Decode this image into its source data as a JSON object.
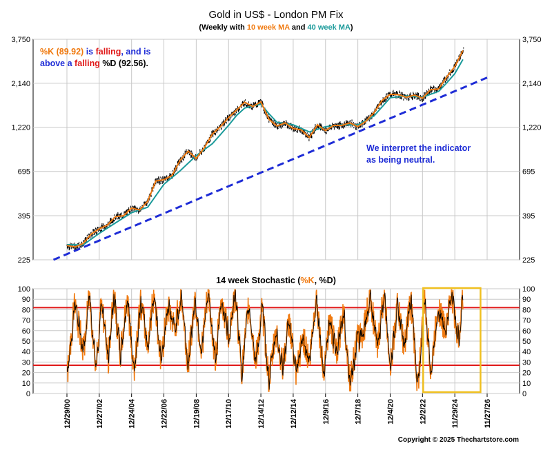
{
  "title": "Gold in US$ - London PM Fix",
  "subtitle": {
    "prefix": "(Weekly with ",
    "ma10": "10 week MA",
    "middle": " and ",
    "ma40": "40 week MA",
    "suffix": ")"
  },
  "colors": {
    "price": "#000000",
    "ma10": "#f07a10",
    "ma40": "#1a9a9a",
    "trendline": "#1e2cd6",
    "stoch_k": "#f07a10",
    "stoch_d": "#000000",
    "bands": "#e01818",
    "highlight": "#f0c020",
    "note_blue": "#1e2cd6",
    "note_red": "#e01818",
    "note_orange": "#f07a10"
  },
  "price_note": {
    "k_label": "%K (89.92)",
    "is": " is ",
    "falling1": "falling",
    "and_is": ", and is",
    "above_a": "above a ",
    "falling2": "falling",
    "d_label": " %D (92.56)."
  },
  "interpretation": {
    "line1": "We interpret the indicator",
    "line2": "as being neutral."
  },
  "stoch_title": {
    "prefix": "14 week Stochastic (",
    "k": "%K",
    "sep": ", ",
    "d": "%D",
    "suffix": ")"
  },
  "copyright": "Copyright © 2025 Thechartstore.com",
  "chart_data": [
    {
      "type": "line",
      "title": "Gold in US$ - London PM Fix",
      "yscale": "log",
      "ylim": [
        225,
        3750
      ],
      "yticks": [
        225,
        395,
        695,
        1220,
        2140,
        3750
      ],
      "ytick_labels": [
        "225",
        "395",
        "695",
        "1,220",
        "2,140",
        "3,750"
      ],
      "xlim": [
        "2000-12-29",
        "2026-11-27"
      ],
      "xticks": [
        "12/29/00",
        "12/27/02",
        "12/24/04",
        "12/22/06",
        "12/19/08",
        "12/17/10",
        "12/14/12",
        "12/12/14",
        "12/9/16",
        "12/7/18",
        "12/4/20",
        "12/2/22",
        "11/29/24",
        "11/27/26"
      ],
      "grid": true,
      "series": [
        {
          "name": "10 week MA",
          "x": [
            "2000-12-29",
            "2001-06-29",
            "2001-12-28",
            "2002-06-28",
            "2002-12-27",
            "2003-06-27",
            "2003-12-26",
            "2004-06-25",
            "2004-12-24",
            "2005-06-24",
            "2005-12-23",
            "2006-06-23",
            "2006-12-22",
            "2007-06-22",
            "2007-12-21",
            "2008-06-20",
            "2008-12-19",
            "2009-06-19",
            "2009-12-18",
            "2010-06-18",
            "2010-12-17",
            "2011-06-17",
            "2011-12-16",
            "2012-06-15",
            "2012-12-14",
            "2013-06-14",
            "2013-12-13",
            "2014-06-13",
            "2014-12-12",
            "2015-06-12",
            "2015-12-11",
            "2016-06-10",
            "2016-12-09",
            "2017-06-09",
            "2017-12-08",
            "2018-06-08",
            "2018-12-07",
            "2019-06-07",
            "2019-12-06",
            "2020-06-05",
            "2020-12-04",
            "2021-06-04",
            "2021-12-03",
            "2022-06-03",
            "2022-12-02",
            "2023-06-02",
            "2023-12-01",
            "2024-05-31",
            "2024-11-29",
            "2025-05-30"
          ],
          "values": [
            270,
            265,
            277,
            312,
            334,
            350,
            390,
            395,
            435,
            425,
            475,
            615,
            625,
            660,
            800,
            900,
            820,
            940,
            1120,
            1230,
            1380,
            1520,
            1680,
            1590,
            1690,
            1350,
            1240,
            1290,
            1200,
            1180,
            1070,
            1260,
            1170,
            1250,
            1250,
            1290,
            1230,
            1320,
            1470,
            1720,
            1860,
            1850,
            1790,
            1840,
            1770,
            1970,
            1990,
            2320,
            2650,
            3250
          ]
        },
        {
          "name": "40 week MA",
          "x": [
            "2000-12-29",
            "2001-12-28",
            "2002-12-27",
            "2003-12-26",
            "2004-12-24",
            "2005-12-23",
            "2006-12-22",
            "2007-12-21",
            "2008-12-19",
            "2009-12-18",
            "2010-12-17",
            "2011-06-17",
            "2011-12-16",
            "2012-06-15",
            "2012-12-14",
            "2013-06-14",
            "2013-12-13",
            "2014-12-12",
            "2015-12-11",
            "2016-12-09",
            "2017-12-08",
            "2018-12-07",
            "2019-12-06",
            "2020-12-04",
            "2021-12-03",
            "2022-12-02",
            "2023-12-01",
            "2024-05-31",
            "2024-11-29",
            "2025-05-30"
          ],
          "values": [
            273,
            272,
            315,
            360,
            410,
            440,
            590,
            700,
            850,
            990,
            1250,
            1420,
            1560,
            1600,
            1640,
            1450,
            1300,
            1260,
            1150,
            1230,
            1260,
            1260,
            1410,
            1780,
            1820,
            1790,
            1930,
            2150,
            2420,
            2900
          ]
        },
        {
          "name": "trendline",
          "x": [
            "2000-03-01",
            "2026-11-27"
          ],
          "values": [
            225,
            2300
          ]
        }
      ],
      "annotations": [
        "%K (89.92) is falling, and is above a falling %D (92.56).",
        "We interpret the indicator as being neutral."
      ]
    },
    {
      "type": "line",
      "title": "14 week Stochastic (%K, %D)",
      "ylim": [
        0,
        100
      ],
      "yticks": [
        0,
        10,
        20,
        30,
        40,
        50,
        60,
        70,
        80,
        90,
        100
      ],
      "bands": [
        27,
        82
      ],
      "grid": true,
      "highlight_range": [
        "2022-12-02",
        "2026-07-01"
      ],
      "series": [
        {
          "name": "%K",
          "x": [
            "2001-01",
            "2001-06",
            "2002-01",
            "2002-05",
            "2002-10",
            "2003-02",
            "2003-07",
            "2003-11",
            "2004-04",
            "2004-09",
            "2005-02",
            "2005-07",
            "2005-12",
            "2006-05",
            "2006-10",
            "2007-03",
            "2007-08",
            "2008-01",
            "2008-06",
            "2008-11",
            "2009-04",
            "2009-09",
            "2010-02",
            "2010-07",
            "2010-12",
            "2011-05",
            "2011-10",
            "2012-03",
            "2012-08",
            "2013-01",
            "2013-06",
            "2013-11",
            "2014-04",
            "2014-09",
            "2015-02",
            "2015-07",
            "2015-12",
            "2016-05",
            "2016-10",
            "2017-03",
            "2017-08",
            "2018-01",
            "2018-06",
            "2018-11",
            "2019-04",
            "2019-09",
            "2020-02",
            "2020-07",
            "2020-12",
            "2021-05",
            "2021-10",
            "2022-03",
            "2022-08",
            "2023-01",
            "2023-06",
            "2023-11",
            "2024-04",
            "2024-09",
            "2025-02",
            "2025-05"
          ],
          "values": [
            20,
            85,
            40,
            95,
            25,
            90,
            30,
            96,
            35,
            92,
            22,
            88,
            45,
            97,
            30,
            85,
            60,
            95,
            25,
            90,
            40,
            97,
            30,
            90,
            55,
            96,
            20,
            85,
            30,
            80,
            10,
            60,
            25,
            70,
            15,
            55,
            30,
            95,
            20,
            70,
            35,
            80,
            10,
            50,
            60,
            95,
            40,
            96,
            25,
            85,
            45,
            90,
            5,
            88,
            20,
            85,
            60,
            95,
            50,
            90
          ]
        }
      ]
    }
  ]
}
